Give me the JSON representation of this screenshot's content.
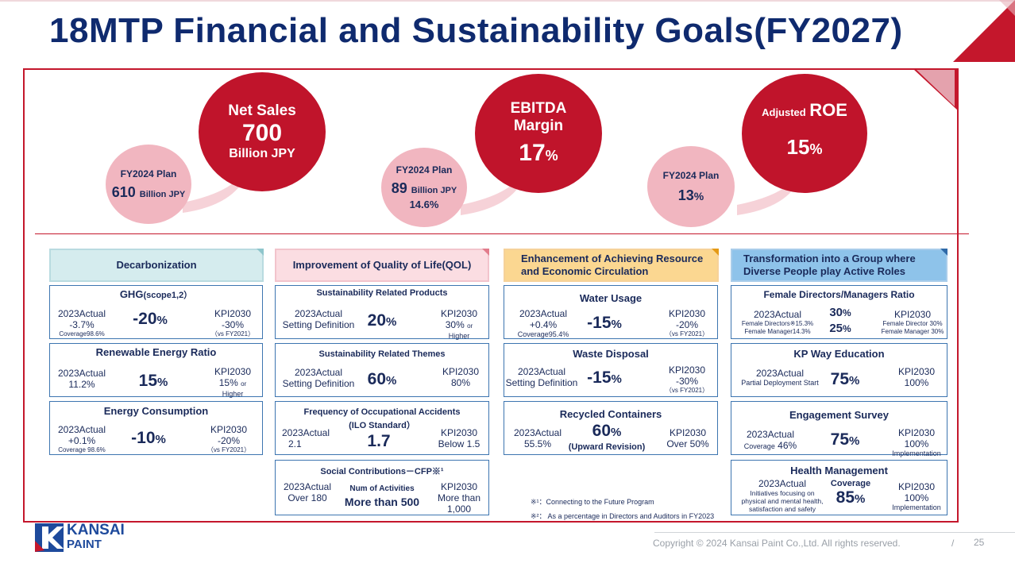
{
  "title": "18MTP Financial and Sustainability Goals(FY2027)",
  "colors": {
    "accent_red": "#c0142b",
    "navy": "#0f2a6e",
    "pink": "#f1b6c0"
  },
  "goals": {
    "net_sales": {
      "label": "Net Sales",
      "value": "700",
      "unit": "Billion JPY",
      "plan_label": "FY2024 Plan",
      "plan_value": "610",
      "plan_unit": "Billion JPY"
    },
    "ebitda": {
      "label1": "EBITDA",
      "label2": "Margin",
      "value": "17",
      "unit": "%",
      "plan_label": "FY2024 Plan",
      "plan_value": "89",
      "plan_unit": "Billion JPY",
      "plan_sub": "14.6%"
    },
    "roe": {
      "label_prefix": "Adjusted",
      "label": "ROE",
      "value": "15",
      "unit": "%",
      "plan_label": "FY2024 Plan",
      "plan_value": "13",
      "plan_unit": "%"
    }
  },
  "categories": {
    "decarbonization": "Decarbonization",
    "qol": "Improvement of Quality of Life(QOL)",
    "resource": "Enhancement of Achieving Resource and Economic Circulation",
    "diversity": "Transformation into a Group where Diverse People play Active Roles"
  },
  "col1": [
    {
      "title": "GHG",
      "title_small": "(scope1,2）",
      "left1": "2023Actual",
      "left2": "-3.7%",
      "left3": "Coverage98.6%",
      "mid": "-20",
      "mid_unit": "%",
      "right1": "KPI2030",
      "right2": "-30%",
      "right3": "（vs FY2021）"
    },
    {
      "title": "Renewable Energy Ratio",
      "left1": "2023Actual",
      "left2": "11.2%",
      "mid": "15",
      "mid_unit": "%",
      "right1": "KPI2030",
      "right2": "15%",
      "right2_small": "or",
      "right3": "Higher"
    },
    {
      "title": "Energy Consumption",
      "left1": "2023Actual",
      "left2": "+0.1%",
      "left3": "Coverage 98.6%",
      "mid": "-10",
      "mid_unit": "%",
      "right1": "KPI2030",
      "right2": "-20%",
      "right3": "（vs FY2021）"
    }
  ],
  "col2": [
    {
      "title": "Sustainability Related Products",
      "left1": "2023Actual",
      "left2": "Setting Definition",
      "mid": "20",
      "mid_unit": "%",
      "right1": "KPI2030",
      "right2": "30%",
      "right2_small": "or",
      "right3": "Higher"
    },
    {
      "title": "Sustainability Related Themes",
      "left1": "2023Actual",
      "left2": "Setting Definition",
      "mid": "60",
      "mid_unit": "%",
      "right1": "KPI2030",
      "right2": "80%"
    },
    {
      "title": "Frequency of Occupational Accidents",
      "title2": "(ILO Standard）",
      "left1": "2023Actual",
      "left2": "2.1",
      "mid": "1.7",
      "right1": "KPI2030",
      "right2": "Below 1.5"
    },
    {
      "title": "Social Contributions－CFP※¹",
      "left1": "2023Actual",
      "left2": "Over 180",
      "mid_small": "Num of Activities",
      "mid": "More than 500",
      "right1": "KPI2030",
      "right2": "More than",
      "right3": "1,000"
    }
  ],
  "col3": [
    {
      "title": "Water Usage",
      "left1": "2023Actual",
      "left2": "+0.4%",
      "left3": "Coverage95.4%",
      "mid": "-15",
      "mid_unit": "%",
      "right1": "KPI2030",
      "right2": "-20%",
      "right3": "（vs FY2021）"
    },
    {
      "title": "Waste Disposal",
      "left1": "2023Actual",
      "left2": "Setting Definition",
      "mid": "-15",
      "mid_unit": "%",
      "right1": "KPI2030",
      "right2": "-30%",
      "right3": "（vs FY2021）"
    },
    {
      "title": "Recycled Containers",
      "left1": "2023Actual",
      "left2": "55.5%",
      "mid": "60",
      "mid_unit": "%",
      "mid_sub": "(Upward Revision)",
      "right1": "KPI2030",
      "right2": "Over 50%"
    }
  ],
  "col4": [
    {
      "title": "Female Directors/Managers Ratio",
      "left1": "2023Actual",
      "left2": "Female Directors※15.3%",
      "left3": "Female Manager14.3%",
      "mid": "30",
      "mid_unit": "%",
      "mid2": "25",
      "right1": "KPI2030",
      "right2": "Female Director 30%",
      "right3": "Female Manager 30%"
    },
    {
      "title": "KP Way Education",
      "left1": "2023Actual",
      "left2": "Partial Deployment Start",
      "mid": "75",
      "mid_unit": "%",
      "right1": "KPI2030",
      "right2": "100%"
    },
    {
      "title": "Engagement Survey",
      "left1": "2023Actual",
      "left2": "Coverage",
      "left2b": "46%",
      "mid": "75",
      "mid_unit": "%",
      "right1": "KPI2030",
      "right2": "100%",
      "right3": "Implementation"
    },
    {
      "title": "Health Management",
      "left1": "2023Actual",
      "left2": "Initiatives focusing on",
      "left3": "physical and mental health,",
      "left4": "satisfaction and safety",
      "mid_small": "Coverage",
      "mid": "85",
      "mid_unit": "%",
      "right1": "KPI2030",
      "right2": "100%",
      "right3": "Implementation"
    }
  ],
  "notes": {
    "n1": "※¹：Connecting to the Future Program",
    "n2": "※²： As a percentage in Directors and Auditors in FY2023"
  },
  "logo": {
    "line1": "KANSAI",
    "line2": "PAINT"
  },
  "footer": {
    "copyright": "Copyright © 2024 Kansai Paint Co.,Ltd. All rights reserved.",
    "sep": "/",
    "page": "25"
  }
}
